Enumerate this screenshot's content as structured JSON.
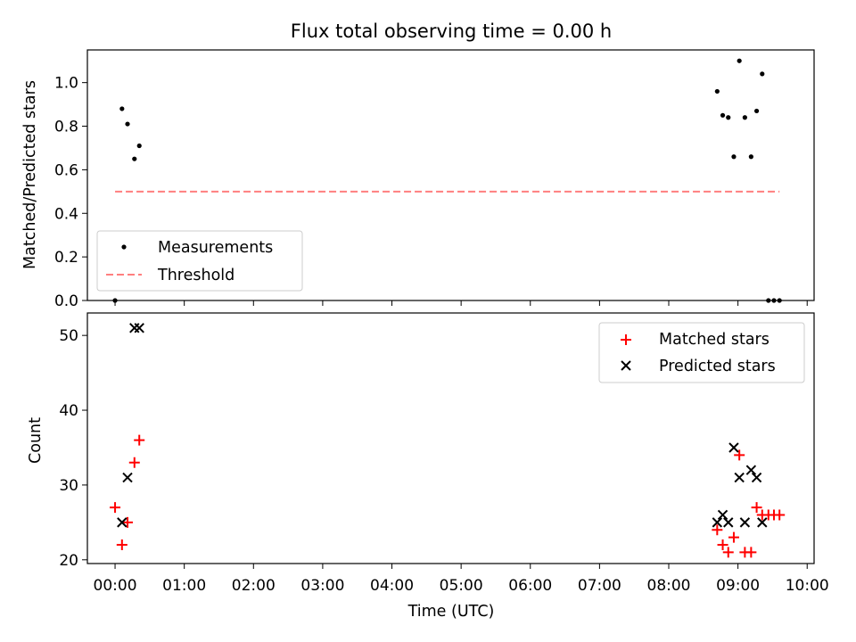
{
  "figure_title": "Flux total observing time = 0.00 h",
  "chart_data": [
    {
      "type": "scatter",
      "ylabel": "Matched/Predicted stars",
      "xlabel": "",
      "xlim": [
        -0.4,
        10.1
      ],
      "ylim": [
        0.0,
        1.15
      ],
      "xtick_values": [
        0,
        1,
        2,
        3,
        4,
        5,
        6,
        7,
        8,
        9,
        10
      ],
      "ytick_values": [
        0.0,
        0.2,
        0.4,
        0.6,
        0.8,
        1.0
      ],
      "ytick_labels": [
        "0.0",
        "0.2",
        "0.4",
        "0.6",
        "0.8",
        "1.0"
      ],
      "grid": false,
      "legend_position": "lower-left",
      "series": [
        {
          "name": "Measurements",
          "marker": "dot",
          "color": "#000000",
          "points": [
            [
              0.0,
              0.0
            ],
            [
              0.1,
              0.88
            ],
            [
              0.18,
              0.81
            ],
            [
              0.28,
              0.65
            ],
            [
              0.35,
              0.71
            ],
            [
              8.7,
              0.96
            ],
            [
              8.78,
              0.85
            ],
            [
              8.86,
              0.84
            ],
            [
              8.94,
              0.66
            ],
            [
              9.02,
              1.1
            ],
            [
              9.1,
              0.84
            ],
            [
              9.19,
              0.66
            ],
            [
              9.27,
              0.87
            ],
            [
              9.35,
              1.04
            ],
            [
              9.44,
              0.0
            ],
            [
              9.52,
              0.0
            ],
            [
              9.6,
              0.0
            ]
          ]
        },
        {
          "name": "Threshold",
          "style": "dashed-line",
          "color": "#ff7f7f",
          "points": [
            [
              0.0,
              0.5
            ],
            [
              9.6,
              0.5
            ]
          ]
        }
      ]
    },
    {
      "type": "scatter",
      "ylabel": "Count",
      "xlabel": "Time (UTC)",
      "xlim": [
        -0.4,
        10.1
      ],
      "ylim": [
        19.5,
        53.0
      ],
      "xtick_values": [
        0,
        1,
        2,
        3,
        4,
        5,
        6,
        7,
        8,
        9,
        10
      ],
      "xtick_labels": [
        "00:00",
        "01:00",
        "02:00",
        "03:00",
        "04:00",
        "05:00",
        "06:00",
        "07:00",
        "08:00",
        "09:00",
        "10:00"
      ],
      "ytick_values": [
        20,
        30,
        40,
        50
      ],
      "ytick_labels": [
        "20",
        "30",
        "40",
        "50"
      ],
      "grid": false,
      "legend_position": "upper-right",
      "series": [
        {
          "name": "Matched stars",
          "marker": "plus",
          "color": "#ff0000",
          "points": [
            [
              0.0,
              27
            ],
            [
              0.1,
              22
            ],
            [
              0.18,
              25
            ],
            [
              0.28,
              33
            ],
            [
              0.35,
              36
            ],
            [
              8.7,
              24
            ],
            [
              8.78,
              22
            ],
            [
              8.86,
              21
            ],
            [
              8.94,
              23
            ],
            [
              9.02,
              34
            ],
            [
              9.1,
              21
            ],
            [
              9.19,
              21
            ],
            [
              9.27,
              27
            ],
            [
              9.35,
              26
            ],
            [
              9.44,
              26
            ],
            [
              9.52,
              26
            ],
            [
              9.6,
              26
            ]
          ]
        },
        {
          "name": "Predicted stars",
          "marker": "x",
          "color": "#000000",
          "points": [
            [
              0.1,
              25
            ],
            [
              0.18,
              31
            ],
            [
              0.28,
              51
            ],
            [
              0.35,
              51
            ],
            [
              8.7,
              25
            ],
            [
              8.78,
              26
            ],
            [
              8.86,
              25
            ],
            [
              8.94,
              35
            ],
            [
              9.02,
              31
            ],
            [
              9.1,
              25
            ],
            [
              9.19,
              32
            ],
            [
              9.27,
              31
            ],
            [
              9.35,
              25
            ]
          ]
        }
      ]
    }
  ]
}
